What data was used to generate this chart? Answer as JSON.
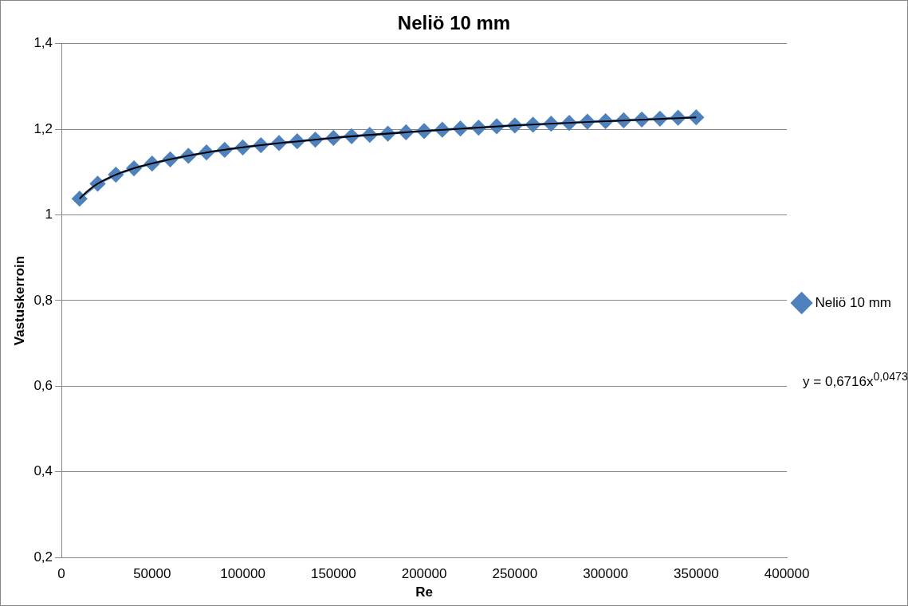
{
  "chart_data": {
    "type": "line",
    "title": "Neliö 10 mm",
    "xlabel": "Re",
    "ylabel": "Vastuskerroin",
    "x": [
      10000,
      20000,
      30000,
      40000,
      50000,
      60000,
      70000,
      80000,
      90000,
      100000,
      110000,
      120000,
      130000,
      140000,
      150000,
      160000,
      170000,
      180000,
      190000,
      200000,
      210000,
      220000,
      230000,
      240000,
      250000,
      260000,
      270000,
      280000,
      290000,
      300000,
      310000,
      320000,
      330000,
      340000,
      350000
    ],
    "series": [
      {
        "name": "Neliö 10 mm",
        "color": "#4f81bd",
        "values": [
          1.038,
          1.073,
          1.094,
          1.109,
          1.12,
          1.13,
          1.138,
          1.146,
          1.152,
          1.158,
          1.163,
          1.168,
          1.172,
          1.176,
          1.18,
          1.184,
          1.187,
          1.19,
          1.193,
          1.196,
          1.199,
          1.202,
          1.204,
          1.207,
          1.209,
          1.211,
          1.213,
          1.215,
          1.218,
          1.219,
          1.221,
          1.223,
          1.225,
          1.227,
          1.228
        ]
      },
      {
        "type": "line",
        "color": "#000000",
        "marker": "none",
        "x": [
          10000,
          15000,
          20000,
          30000,
          40000,
          60000,
          80000,
          100000,
          150000,
          200000,
          250000,
          300000,
          350000
        ],
        "values": [
          1.038,
          1.058,
          1.073,
          1.094,
          1.109,
          1.13,
          1.146,
          1.158,
          1.18,
          1.196,
          1.209,
          1.219,
          1.228
        ]
      }
    ],
    "xlim": [
      0,
      400000
    ],
    "xticks": [
      0,
      50000,
      100000,
      150000,
      200000,
      250000,
      300000,
      350000,
      400000
    ],
    "ylim": [
      0.2,
      1.4
    ],
    "yticks": [
      {
        "value": 0.2,
        "label": "0,2"
      },
      {
        "value": 0.4,
        "label": "0,4"
      },
      {
        "value": 0.6,
        "label": "0,6"
      },
      {
        "value": 0.8,
        "label": "0,8"
      },
      {
        "value": 1,
        "label": "1"
      },
      {
        "value": 1.2,
        "label": "1,2"
      },
      {
        "value": 1.4,
        "label": "1,4"
      }
    ],
    "grid": "y",
    "legend": "right",
    "marker": "diamond",
    "line_style": "solid",
    "annotations": [
      "y = 0,6716x$^{0,0473}$"
    ]
  }
}
